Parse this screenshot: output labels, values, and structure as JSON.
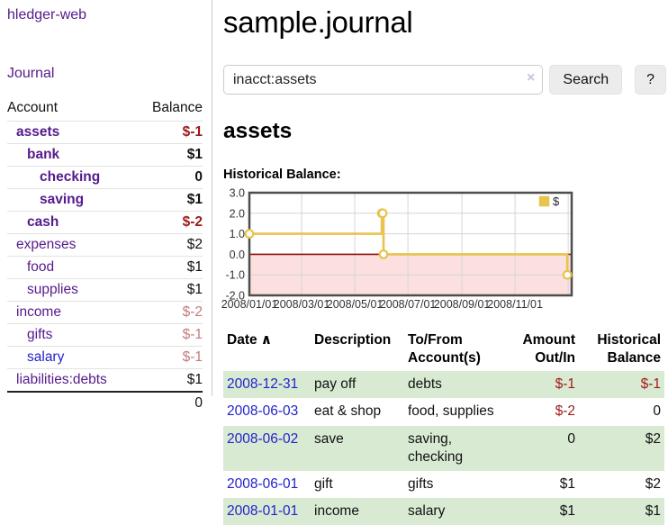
{
  "colors": {
    "link_purple": "#551a8b",
    "link_blue": "#2222cc",
    "negative_strong": "#9e1a1a",
    "negative_dim": "#c17d7d",
    "row_stripe_green": "#d9ead3",
    "chart_line_gold": "#e8c34e",
    "chart_zero_line_red": "#8f0e0e",
    "chart_negative_fill_pink": "#fcdfdf",
    "chart_border_gray": "#4d4d4d",
    "chart_grid_gray": "#d6d6d6"
  },
  "sidebar": {
    "brand": "hledger-web",
    "nav_journal": "Journal",
    "table": {
      "headers": [
        "Account",
        "Balance"
      ],
      "rows": [
        {
          "name": "assets",
          "balance": "$-1",
          "depth": 1,
          "bold": true,
          "blue": false
        },
        {
          "name": "bank",
          "balance": "$1",
          "depth": 2,
          "bold": true,
          "blue": false
        },
        {
          "name": "checking",
          "balance": "0",
          "depth": 3,
          "bold": true,
          "blue": false
        },
        {
          "name": "saving",
          "balance": "$1",
          "depth": 3,
          "bold": true,
          "blue": false
        },
        {
          "name": "cash",
          "balance": "$-2",
          "depth": 2,
          "bold": true,
          "blue": false
        },
        {
          "name": "expenses",
          "balance": "$2",
          "depth": 1,
          "bold": false,
          "blue": false
        },
        {
          "name": "food",
          "balance": "$1",
          "depth": 2,
          "bold": false,
          "blue": false
        },
        {
          "name": "supplies",
          "balance": "$1",
          "depth": 2,
          "bold": false,
          "blue": false
        },
        {
          "name": "income",
          "balance": "$-2",
          "depth": 1,
          "bold": false,
          "blue": false
        },
        {
          "name": "gifts",
          "balance": "$-1",
          "depth": 2,
          "bold": false,
          "blue": false
        },
        {
          "name": "salary",
          "balance": "$-1",
          "depth": 2,
          "bold": false,
          "blue": true
        },
        {
          "name": "liabilities:debts",
          "balance": "$1",
          "depth": 1,
          "bold": false,
          "blue": false
        }
      ],
      "total": "0"
    }
  },
  "main": {
    "title": "sample.journal",
    "search": {
      "value": "inacct:assets",
      "clear_icon": "×",
      "search_button": "Search",
      "help_button": "?"
    },
    "heading": "assets",
    "chart_title": "Historical Balance:"
  },
  "chart_data": {
    "type": "line",
    "step": true,
    "title": "Historical Balance:",
    "legend": [
      {
        "label": "$",
        "color": "#e8c34e"
      }
    ],
    "legend_position": "top-right",
    "points": [
      {
        "date": "2008-01-01",
        "value": 1
      },
      {
        "date": "2008-06-01",
        "value": 2
      },
      {
        "date": "2008-06-02",
        "value": 2
      },
      {
        "date": "2008-06-03",
        "value": 0
      },
      {
        "date": "2008-12-31",
        "value": -1
      }
    ],
    "x_ticks": [
      "2008/01/01",
      "2008/03/01",
      "2008/05/01",
      "2008/07/01",
      "2008/09/01",
      "2008/11/01"
    ],
    "x_extra_gridline": "2009/01/01",
    "y_ticks": [
      "3.0",
      "2.0",
      "1.0",
      "0.0",
      "-1.0",
      "-2.0"
    ],
    "ylim": [
      -2,
      3
    ],
    "grid": true,
    "negative_region_shaded": true
  },
  "register": {
    "headers": [
      "Date",
      "Description",
      "To/From Account(s)",
      "Amount Out/In",
      "Historical Balance"
    ],
    "sort_icon": "∧",
    "rows": [
      {
        "date": "2008-12-31",
        "description": "pay off",
        "accounts": "debts",
        "amount": "$-1",
        "balance": "$-1"
      },
      {
        "date": "2008-06-03",
        "description": "eat & shop",
        "accounts": "food, supplies",
        "amount": "$-2",
        "balance": "0"
      },
      {
        "date": "2008-06-02",
        "description": "save",
        "accounts": "saving, checking",
        "amount": "0",
        "balance": "$2"
      },
      {
        "date": "2008-06-01",
        "description": "gift",
        "accounts": "gifts",
        "amount": "$1",
        "balance": "$2"
      },
      {
        "date": "2008-01-01",
        "description": "income",
        "accounts": "salary",
        "amount": "$1",
        "balance": "$1"
      }
    ]
  }
}
